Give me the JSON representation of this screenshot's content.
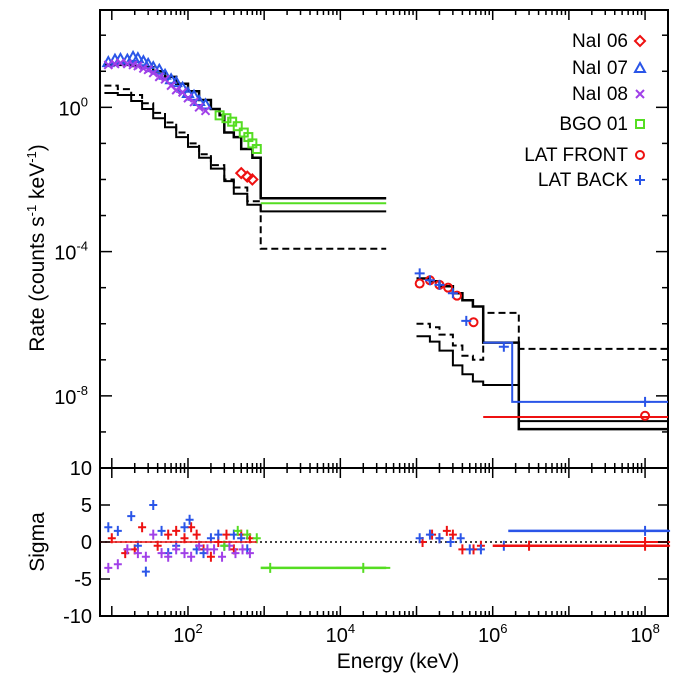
{
  "chart_data": [
    {
      "type": "step",
      "panel": "spectrum",
      "ylabel": "Rate (counts s^-1 keV^-1)",
      "ylabel_parts": {
        "pre": "Rate (counts s",
        "exp1": "-1",
        "mid": " keV",
        "exp2": "-1",
        "post": ")"
      },
      "xscale": "log",
      "yscale": "log",
      "xlim": [
        7,
        200000000
      ],
      "ylim": [
        1e-10,
        500
      ],
      "yticks": [
        {
          "mant": "10",
          "exp": "0",
          "value": 1
        },
        {
          "mant": "10",
          "exp": "-4",
          "value": 0.0001
        },
        {
          "mant": "10",
          "exp": "-8",
          "value": 1e-08
        }
      ],
      "legend_position": "top-right",
      "legend": [
        {
          "label": "NaI 06",
          "marker": "diamond",
          "color": "#ee1111"
        },
        {
          "label": "NaI 07",
          "marker": "triangle",
          "color": "#2a55e8"
        },
        {
          "label": "NaI 08",
          "marker": "x",
          "color": "#a040e8"
        },
        {
          "label": "BGO 01",
          "marker": "square",
          "color": "#55dd22"
        },
        {
          "label": "LAT FRONT",
          "marker": "circle",
          "color": "#ee1111"
        },
        {
          "label": "LAT BACK",
          "marker": "plus",
          "color": "#2a55e8"
        }
      ],
      "series": [
        {
          "kind": "model-total",
          "color": "#000000",
          "x": [
            8,
            12,
            18,
            25,
            35,
            50,
            70,
            100,
            140,
            200,
            260,
            300,
            400,
            500,
            700,
            900,
            40000
          ],
          "y": [
            15,
            15,
            14,
            13,
            10,
            7,
            4.5,
            2.8,
            1.6,
            0.9,
            0.6,
            0.2,
            0.15,
            0.07,
            0.04,
            0.003,
            0.003
          ]
        },
        {
          "kind": "model-component",
          "color": "#000000",
          "x": [
            8,
            12,
            18,
            25,
            35,
            50,
            70,
            100,
            140,
            200,
            300,
            400,
            600,
            900,
            40000
          ],
          "y": [
            2.5,
            2.2,
            1.5,
            0.9,
            0.5,
            0.28,
            0.15,
            0.08,
            0.04,
            0.02,
            0.009,
            0.004,
            0.002,
            0.0013,
            0.0013
          ]
        },
        {
          "kind": "model-component",
          "color": "#000000",
          "x": [
            8,
            12,
            18,
            25,
            35,
            50,
            70,
            100,
            140,
            200,
            300,
            400,
            600,
            900,
            40000
          ],
          "y": [
            4,
            3.2,
            2.2,
            1.3,
            0.7,
            0.38,
            0.2,
            0.1,
            0.05,
            0.025,
            0.01,
            0.006,
            0.0025,
            0.00012,
            0.00012
          ]
        },
        {
          "kind": "model-total",
          "color": "#000000",
          "x": [
            100000,
            150000,
            200000,
            300000,
            400000,
            550000,
            750000,
            2200000,
            200000000
          ],
          "y": [
            1.8e-05,
            1.5e-05,
            1.1e-05,
            7e-06,
            4.5e-06,
            3e-06,
            3e-07,
            1.2e-09,
            1.2e-09
          ]
        },
        {
          "kind": "model-component",
          "color": "#000000",
          "x": [
            100000,
            150000,
            200000,
            300000,
            400000,
            550000,
            750000,
            2200000,
            200000000
          ],
          "y": [
            1e-06,
            8e-07,
            5e-07,
            2.5e-07,
            1.3e-07,
            1e-07,
            2e-06,
            2e-07,
            2e-07
          ]
        },
        {
          "kind": "model-component",
          "color": "#000000",
          "x": [
            100000,
            150000,
            200000,
            300000,
            400000,
            550000,
            750000,
            2200000,
            200000000
          ],
          "y": [
            4.5e-07,
            3.2e-07,
            1.8e-07,
            7e-08,
            4e-08,
            2.5e-08,
            2e-08,
            2e-09,
            2e-09
          ]
        },
        {
          "kind": "model-data",
          "name": "LAT FRONT",
          "color": "#ee1111",
          "x": [
            750000,
            200000000
          ],
          "y": [
            2.6e-09,
            2.6e-09
          ]
        },
        {
          "kind": "model-data",
          "name": "LAT BACK",
          "color": "#2a55e8",
          "x": [
            750000,
            1800000,
            200000000
          ],
          "y": [
            3e-07,
            6.8e-09,
            6.8e-09
          ]
        },
        {
          "kind": "model-data",
          "name": "BGO 01",
          "color": "#55dd22",
          "x": [
            900,
            40000
          ],
          "y": [
            0.0022,
            0.0022
          ]
        },
        {
          "kind": "data",
          "name": "NaI 07",
          "color": "#2a55e8",
          "marker": "triangle",
          "x": [
            9,
            11,
            13,
            16,
            19,
            22,
            26,
            30,
            35,
            42,
            50,
            60,
            70,
            85,
            100,
            120,
            140,
            170
          ],
          "y": [
            18,
            21,
            22,
            21,
            25,
            23,
            19,
            16,
            13,
            11,
            8,
            6,
            5,
            3.5,
            2.5,
            2.1,
            1.5,
            1.2
          ]
        },
        {
          "kind": "data",
          "name": "NaI 08",
          "color": "#a040e8",
          "marker": "x",
          "x": [
            9,
            11,
            13,
            16,
            19,
            22,
            26,
            30,
            35,
            42,
            50,
            60,
            70,
            85,
            100,
            120,
            140,
            170
          ],
          "y": [
            15,
            16,
            17,
            16,
            15,
            14,
            12,
            11,
            9,
            7,
            6,
            4,
            3,
            2.6,
            1.8,
            1.4,
            1,
            0.8
          ]
        },
        {
          "kind": "data",
          "name": "BGO 01",
          "color": "#55dd22",
          "marker": "square",
          "x": [
            260,
            320,
            380,
            450,
            540,
            620,
            700,
            800
          ],
          "y": [
            0.6,
            0.5,
            0.4,
            0.3,
            0.2,
            0.15,
            0.1,
            0.07
          ]
        },
        {
          "kind": "data",
          "name": "NaI 06",
          "color": "#ee1111",
          "marker": "diamond",
          "x": [
            500,
            600,
            700
          ],
          "y": [
            0.015,
            0.012,
            0.01
          ]
        },
        {
          "kind": "data",
          "name": "LAT FRONT",
          "color": "#ee1111",
          "marker": "circle",
          "x": [
            110000,
            150000,
            200000,
            260000,
            340000,
            560000,
            100000000
          ],
          "y": [
            1.3e-05,
            1.6e-05,
            1.2e-05,
            1e-05,
            6e-06,
            1.1e-06,
            2.8e-09
          ]
        },
        {
          "kind": "data",
          "name": "LAT BACK",
          "color": "#2a55e8",
          "marker": "plus",
          "x": [
            110000,
            150000,
            200000,
            300000,
            450000,
            1400000,
            100000000
          ],
          "y": [
            2.5e-05,
            1.6e-05,
            1.2e-05,
            7e-06,
            1.2e-06,
            2.3e-07,
            6.8e-09
          ]
        }
      ]
    },
    {
      "type": "scatter",
      "panel": "residuals",
      "ylabel": "Sigma",
      "xlabel": "Energy (keV)",
      "xscale": "log",
      "xlim": [
        7,
        200000000
      ],
      "ylim": [
        -10,
        10
      ],
      "yticks": [
        {
          "label": "10",
          "value": 10
        },
        {
          "label": "5",
          "value": 5
        },
        {
          "label": "0",
          "value": 0
        },
        {
          "label": "-5",
          "value": -5
        },
        {
          "label": "-10",
          "value": -10
        }
      ],
      "xticks": [
        {
          "mant": "10",
          "exp": "2",
          "value": 100
        },
        {
          "mant": "10",
          "exp": "4",
          "value": 10000
        },
        {
          "mant": "10",
          "exp": "6",
          "value": 1000000
        },
        {
          "mant": "10",
          "exp": "8",
          "value": 100000000
        }
      ],
      "zero_line": "dotted",
      "series": [
        {
          "name": "NaI 06",
          "color": "#ee1111",
          "x": [
            10,
            15,
            20,
            25,
            40,
            55,
            70,
            90,
            110,
            130,
            160,
            200,
            250,
            320,
            400,
            500,
            650,
            100000000
          ],
          "y": [
            0.5,
            -1.5,
            -1,
            2,
            -0.5,
            1,
            1.5,
            0.5,
            2,
            1,
            -1,
            -2,
            0,
            1,
            -1,
            1,
            0.5,
            0
          ]
        },
        {
          "name": "NaI 07",
          "color": "#2a55e8",
          "x": [
            9,
            12,
            18,
            22,
            28,
            35,
            45,
            55,
            70,
            90,
            105,
            130,
            160,
            200,
            250,
            300,
            400,
            500,
            600
          ],
          "y": [
            2,
            1.5,
            3.5,
            -0.5,
            -4,
            5,
            1.5,
            -1.5,
            -0.5,
            2,
            3,
            -1,
            -1.5,
            0.5,
            1,
            -0.5,
            1,
            0.5,
            -1
          ]
        },
        {
          "name": "NaI 08",
          "color": "#a040e8",
          "x": [
            9,
            12,
            16,
            22,
            28,
            35,
            45,
            55,
            70,
            90,
            110,
            140,
            180,
            220,
            280,
            350,
            420,
            520,
            650
          ],
          "y": [
            -3.5,
            -3,
            -1,
            -1.5,
            -2,
            1,
            -1.5,
            -2,
            -1,
            -1.5,
            -2,
            -0.5,
            -1,
            -1,
            -2,
            -0.5,
            -1.5,
            -1,
            -1.5
          ]
        },
        {
          "name": "BGO 01",
          "color": "#55dd22",
          "x": [
            300,
            450,
            600,
            800,
            1200,
            20000
          ],
          "y": [
            -0.5,
            1.5,
            1,
            0.5,
            -3.5,
            -3.5
          ]
        },
        {
          "name": "LAT FRONT",
          "color": "#ee1111",
          "x": [
            120000,
            160000,
            200000,
            250000,
            300000,
            400000,
            560000,
            700000,
            3000000,
            100000000
          ],
          "y": [
            0,
            1,
            0.5,
            1.5,
            1,
            -1,
            -1,
            -0.5,
            -0.5,
            -0.5
          ]
        },
        {
          "name": "LAT BACK",
          "color": "#2a55e8",
          "x": [
            110000,
            150000,
            200000,
            280000,
            380000,
            500000,
            700000,
            1400000,
            100000000
          ],
          "y": [
            0.5,
            1,
            0.5,
            0,
            0.5,
            -1,
            -1,
            -0.5,
            1.5
          ]
        }
      ]
    }
  ]
}
